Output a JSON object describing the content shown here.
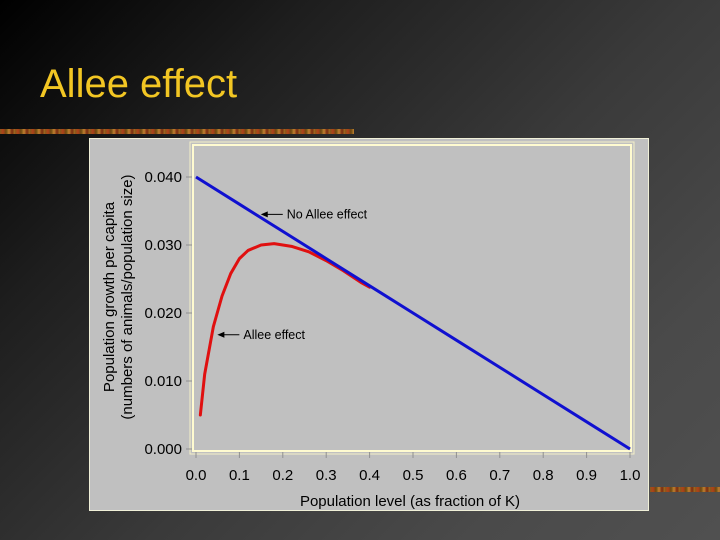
{
  "slide": {
    "title": "Allee effect"
  },
  "colors": {
    "title": "#f2c623",
    "no_allee_line": "#1010d0",
    "allee_line": "#e01010",
    "plot_bg": "#c0c0c0",
    "plot_border": "#fffbd0"
  },
  "chart_data": {
    "type": "line",
    "title": "",
    "xlabel": "Population level (as fraction of K)",
    "ylabel": "Population growth per capita",
    "ylabel_line2": "(numbers of animals/population size)",
    "xlim": [
      0.0,
      1.0
    ],
    "ylim": [
      0.0,
      0.04
    ],
    "x_ticks": [
      "0.0",
      "0.1",
      "0.2",
      "0.3",
      "0.4",
      "0.5",
      "0.6",
      "0.7",
      "0.8",
      "0.9",
      "1.0"
    ],
    "y_ticks": [
      "0.000",
      "0.010",
      "0.020",
      "0.030",
      "0.040"
    ],
    "grid": false,
    "legend": "annotations",
    "series": [
      {
        "name": "No Allee effect",
        "x": [
          0.0,
          0.1,
          0.2,
          0.3,
          0.4,
          0.5,
          0.6,
          0.7,
          0.8,
          0.9,
          1.0
        ],
        "values": [
          0.04,
          0.036,
          0.032,
          0.028,
          0.024,
          0.02,
          0.016,
          0.012,
          0.008,
          0.004,
          0.0
        ]
      },
      {
        "name": "Allee effect",
        "x": [
          0.01,
          0.02,
          0.04,
          0.06,
          0.08,
          0.1,
          0.12,
          0.15,
          0.18,
          0.22,
          0.26,
          0.3,
          0.34,
          0.38,
          0.4
        ],
        "values": [
          0.005,
          0.011,
          0.018,
          0.0225,
          0.0258,
          0.028,
          0.0292,
          0.03,
          0.0302,
          0.0298,
          0.029,
          0.0277,
          0.0262,
          0.0245,
          0.0238
        ]
      }
    ],
    "annotations": [
      {
        "text": "No Allee effect",
        "arrow_to_x": 0.14,
        "arrow_to_y": 0.0345
      },
      {
        "text": "Allee effect",
        "arrow_to_x": 0.04,
        "arrow_to_y": 0.0168
      }
    ]
  }
}
